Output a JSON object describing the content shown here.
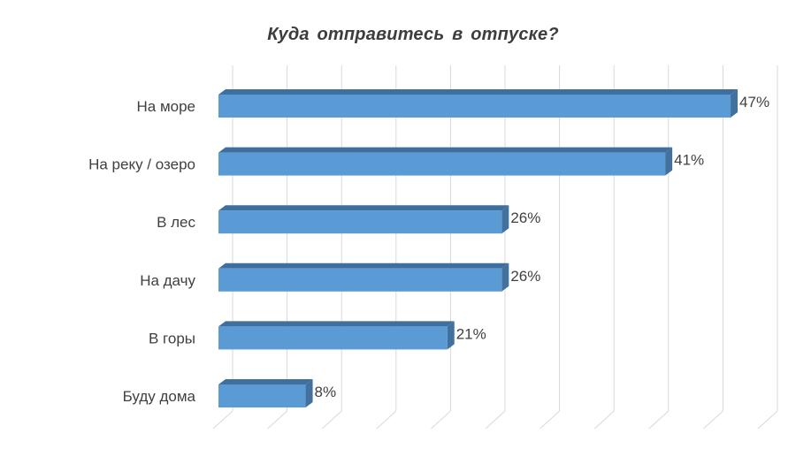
{
  "chart_data": {
    "type": "bar",
    "orientation": "horizontal",
    "style": "3d",
    "title": "Куда отправитесь  в отпуске?",
    "categories": [
      "На море",
      "На реку / озеро",
      "В лес",
      "На дачу",
      "В горы",
      "Буду дома"
    ],
    "values": [
      47,
      41,
      26,
      26,
      21,
      8
    ],
    "value_labels": [
      "47%",
      "41%",
      "26%",
      "26%",
      "21%",
      "8%"
    ],
    "value_suffix": "%",
    "xlim": [
      0,
      50
    ],
    "grid": true,
    "legend": "none",
    "colors": {
      "bar_front": "#5b9bd5",
      "bar_top": "#3f6f9f",
      "bar_side": "#41719c",
      "grid": "#d9d9d9",
      "text": "#404040"
    }
  }
}
